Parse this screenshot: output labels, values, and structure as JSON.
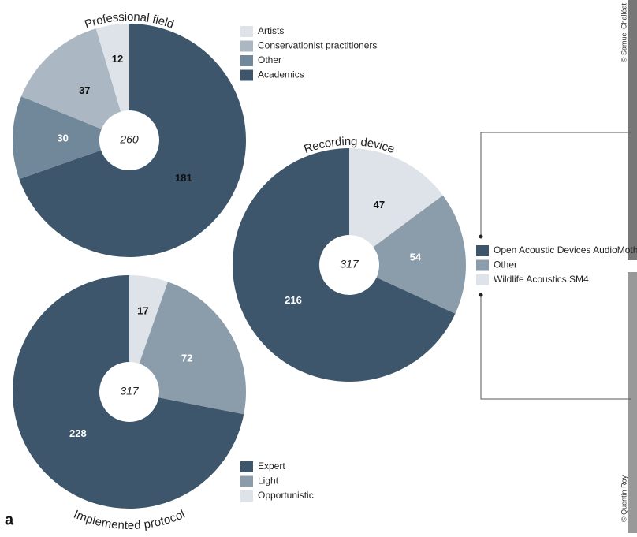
{
  "panel_label": "a",
  "credits": [
    "© Samuel Challéat",
    "© Quentin Roy"
  ],
  "chart_data": [
    {
      "type": "donut",
      "title": "Professional field",
      "total": 260,
      "categories": [
        "Artists",
        "Conservationist practitioners",
        "Other",
        "Academics"
      ],
      "values": [
        12,
        37,
        30,
        181
      ],
      "colors": [
        "#dde3e8",
        "#abb8c3",
        "#71889a",
        "#3d566b"
      ]
    },
    {
      "type": "donut",
      "title": "Recording device",
      "total": 317,
      "categories": [
        "Open Acoustic Devices AudioMoth",
        "Other",
        "Wildlife Acoustics SM4"
      ],
      "values": [
        216,
        54,
        47
      ],
      "colors": [
        "#3d566b",
        "#8b9cab",
        "#dde3e8"
      ]
    },
    {
      "type": "donut",
      "title": "Implemented protocol",
      "total": 317,
      "categories": [
        "Expert",
        "Light",
        "Opportunistic"
      ],
      "values": [
        228,
        72,
        17
      ],
      "colors": [
        "#3d566b",
        "#8b9cab",
        "#dde3e8"
      ]
    }
  ]
}
